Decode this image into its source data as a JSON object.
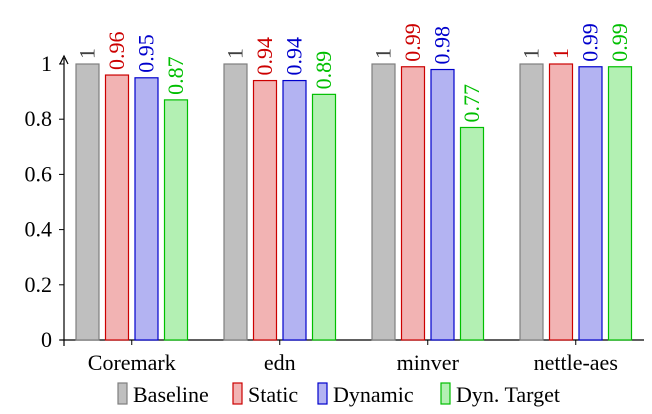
{
  "chart_data": {
    "type": "bar",
    "categories": [
      "Coremark",
      "edn",
      "minver",
      "nettle-aes"
    ],
    "series": [
      {
        "name": "Baseline",
        "values": [
          1,
          1,
          1,
          1
        ],
        "labels": [
          "1",
          "1",
          "1",
          "1"
        ],
        "fill": "#bfbfbf",
        "stroke": "#7f7f7f",
        "label_color": "#3f3f3f"
      },
      {
        "name": "Static",
        "values": [
          0.96,
          0.94,
          0.99,
          1
        ],
        "labels": [
          "0.96",
          "0.94",
          "0.99",
          "1"
        ],
        "fill": "#f2b3b3",
        "stroke": "#cc0000",
        "label_color": "#cc0000"
      },
      {
        "name": "Dynamic",
        "values": [
          0.95,
          0.94,
          0.98,
          0.99
        ],
        "labels": [
          "0.95",
          "0.94",
          "0.98",
          "0.99"
        ],
        "fill": "#b3b3f2",
        "stroke": "#0000cc",
        "label_color": "#0000cc"
      },
      {
        "name": "Dyn. Target",
        "values": [
          0.87,
          0.89,
          0.77,
          0.99
        ],
        "labels": [
          "0.87",
          "0.89",
          "0.77",
          "0.99"
        ],
        "fill": "#b3f0b3",
        "stroke": "#00bf00",
        "label_color": "#00bf00"
      }
    ],
    "ylim": [
      0,
      1.1
    ],
    "yticks": [
      0,
      0.2,
      0.4,
      0.6,
      0.8,
      1
    ],
    "ytick_labels": [
      "0",
      "0.2",
      "0.4",
      "0.6",
      "0.8",
      "1"
    ],
    "grid": false,
    "legend_position": "bottom"
  }
}
